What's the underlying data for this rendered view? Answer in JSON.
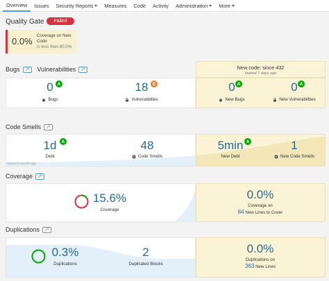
{
  "nav": {
    "items": [
      {
        "label": "Overview",
        "active": true
      },
      {
        "label": "Issues"
      },
      {
        "label": "Security Reports",
        "dropdown": true
      },
      {
        "label": "Measures"
      },
      {
        "label": "Code"
      },
      {
        "label": "Activity"
      },
      {
        "label": "Administration",
        "dropdown": true
      },
      {
        "label": "More",
        "dropdown": true
      }
    ]
  },
  "quality_gate": {
    "title": "Quality Gate",
    "status": "Failed",
    "status_color": "#d4333f",
    "condition": {
      "value": "0.0%",
      "metric": "Coverage on New Code",
      "threshold": "is less than 80.0%"
    }
  },
  "new_code_period": {
    "title": "New code: since 432",
    "subtitle": "started 7 days ago"
  },
  "bugs_vulns": {
    "bugs_title": "Bugs",
    "vulns_title": "Vulnerabilities",
    "bugs": {
      "value": "0",
      "rating": "A",
      "label": "Bugs"
    },
    "vulnerabilities": {
      "value": "18",
      "rating": "D",
      "label": "Vulnerabilities"
    },
    "new_bugs": {
      "value": "0",
      "rating": "A",
      "label": "New Bugs"
    },
    "new_vulnerabilities": {
      "value": "0",
      "rating": "A",
      "label": "New Vulnerabilities"
    }
  },
  "code_smells": {
    "title": "Code Smells",
    "debt": {
      "value": "1d",
      "rating": "A",
      "label": "Debt"
    },
    "smells": {
      "value": "48",
      "label": "Code Smells"
    },
    "new_debt": {
      "value": "5min",
      "rating": "A",
      "label": "New Debt"
    },
    "new_smells": {
      "value": "1",
      "label": "New Code Smells"
    },
    "started": "started 6 months ago"
  },
  "coverage": {
    "title": "Coverage",
    "coverage": {
      "value": "15.6%",
      "label": "Coverage"
    },
    "new_coverage": {
      "value": "0.0%",
      "label": "Coverage on",
      "lines": "84",
      "lines_label": "New Lines to Cover"
    }
  },
  "duplications": {
    "title": "Duplications",
    "duplications": {
      "value": "0.3%",
      "label": "Duplications"
    },
    "blocks": {
      "value": "2",
      "label": "Duplicated Blocks"
    },
    "new_duplications": {
      "value": "0.0%",
      "label": "Duplications on",
      "lines": "363",
      "lines_label": "New Lines"
    }
  },
  "colors": {
    "accent": "#4b9fd5",
    "value_blue": "#236a97",
    "rating_a": "#00aa00",
    "rating_d": "#ed7d20",
    "leak_bg": "#fbf3d5"
  }
}
